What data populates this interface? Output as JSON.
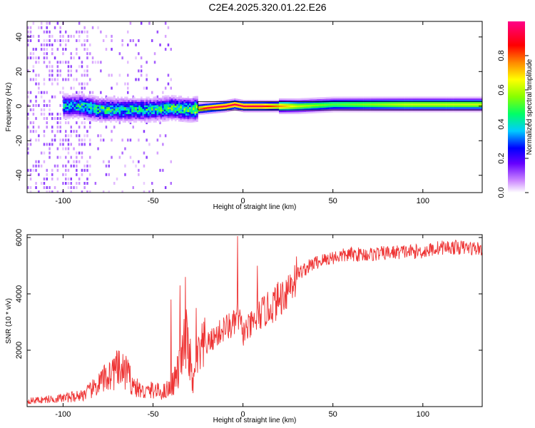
{
  "title": "C2E4.2025.320.01.22.E26",
  "chart_data": [
    {
      "type": "heatmap",
      "xlabel": "Height of straight line (km)",
      "ylabel": "Frequency (Hz)",
      "xlim": [
        -120,
        133
      ],
      "ylim": [
        -50,
        49
      ],
      "x_ticks": [
        -100,
        -50,
        0,
        50,
        100
      ],
      "x_tick_labels": [
        "-100",
        "-50",
        "0",
        "50",
        "100"
      ],
      "y_ticks": [
        40,
        20,
        0,
        -20,
        -40
      ],
      "y_tick_labels": [
        "40",
        "20",
        "0",
        "-20",
        "-40"
      ],
      "colorbar": {
        "label": "Normalized spectral amplitude",
        "range": [
          0,
          1
        ],
        "ticks": [
          0.0,
          0.2,
          0.4,
          0.6,
          0.8
        ],
        "tick_labels": [
          "0.0",
          "0.2",
          "0.4",
          "0.6",
          "0.8"
        ],
        "colormap": [
          "#ffffff",
          "#cc88ff",
          "#6600ff",
          "#0000ff",
          "#00ccff",
          "#00ff66",
          "#88ff00",
          "#ffff00",
          "#ff8800",
          "#ff0000",
          "#ff0088"
        ]
      },
      "ridge": [
        {
          "x": -100,
          "freq": 0,
          "amp": 0.45
        },
        {
          "x": -90,
          "freq": 0,
          "amp": 0.5
        },
        {
          "x": -80,
          "freq": -2,
          "amp": 0.55
        },
        {
          "x": -70,
          "freq": -2,
          "amp": 0.5
        },
        {
          "x": -60,
          "freq": -2,
          "amp": 0.5
        },
        {
          "x": -50,
          "freq": -2,
          "amp": 0.5
        },
        {
          "x": -40,
          "freq": -1,
          "amp": 0.55
        },
        {
          "x": -30,
          "freq": -2,
          "amp": 0.6
        },
        {
          "x": -20,
          "freq": -1,
          "amp": 0.95
        },
        {
          "x": -10,
          "freq": 0,
          "amp": 0.95
        },
        {
          "x": -5,
          "freq": 1,
          "amp": 0.95
        },
        {
          "x": 0,
          "freq": 0,
          "amp": 0.95
        },
        {
          "x": 10,
          "freq": 0,
          "amp": 0.95
        },
        {
          "x": 30,
          "freq": 0,
          "amp": 0.65
        },
        {
          "x": 50,
          "freq": 1,
          "amp": 0.55
        },
        {
          "x": 70,
          "freq": 1,
          "amp": 0.6
        },
        {
          "x": 90,
          "freq": 1,
          "amp": 0.65
        },
        {
          "x": 110,
          "freq": 1,
          "amp": 0.65
        },
        {
          "x": 133,
          "freq": 1,
          "amp": 0.65
        }
      ]
    },
    {
      "type": "line",
      "xlabel": "Height of straight line (km)",
      "ylabel": "SNR (10 * v/v)",
      "xlim": [
        -120,
        133
      ],
      "ylim": [
        0,
        6100
      ],
      "x_ticks": [
        -100,
        -50,
        0,
        50,
        100
      ],
      "x_tick_labels": [
        "-100",
        "-50",
        "0",
        "50",
        "100"
      ],
      "y_ticks": [
        6000,
        4000,
        2000
      ],
      "y_tick_labels": [
        "6000",
        "4000",
        "2000"
      ],
      "color": "#ee3333",
      "series": [
        {
          "name": "SNR",
          "x": [
            -120,
            -110,
            -100,
            -90,
            -85,
            -80,
            -75,
            -70,
            -65,
            -60,
            -55,
            -50,
            -45,
            -40,
            -35,
            -32,
            -30,
            -28,
            -25,
            -20,
            -15,
            -10,
            -5,
            -3,
            0,
            5,
            10,
            15,
            20,
            25,
            30,
            40,
            50,
            60,
            70,
            80,
            90,
            100,
            110,
            120,
            133
          ],
          "values": [
            200,
            250,
            300,
            400,
            550,
            800,
            1100,
            1300,
            1200,
            700,
            500,
            600,
            500,
            700,
            1400,
            2300,
            2100,
            700,
            1700,
            2200,
            2500,
            2800,
            2900,
            3300,
            2600,
            2900,
            3300,
            3500,
            3800,
            4200,
            4700,
            5100,
            5300,
            5400,
            5400,
            5450,
            5500,
            5500,
            5650,
            5650,
            5600
          ],
          "spikes": [
            {
              "x": -72,
              "value": 1700
            },
            {
              "x": -65,
              "value": 1800
            },
            {
              "x": -40,
              "value": 3800
            },
            {
              "x": -35,
              "value": 4300
            },
            {
              "x": -32,
              "value": 4600
            },
            {
              "x": -26,
              "value": 3500
            },
            {
              "x": -3,
              "value": 6050
            },
            {
              "x": 8,
              "value": 5000
            }
          ]
        }
      ]
    }
  ]
}
